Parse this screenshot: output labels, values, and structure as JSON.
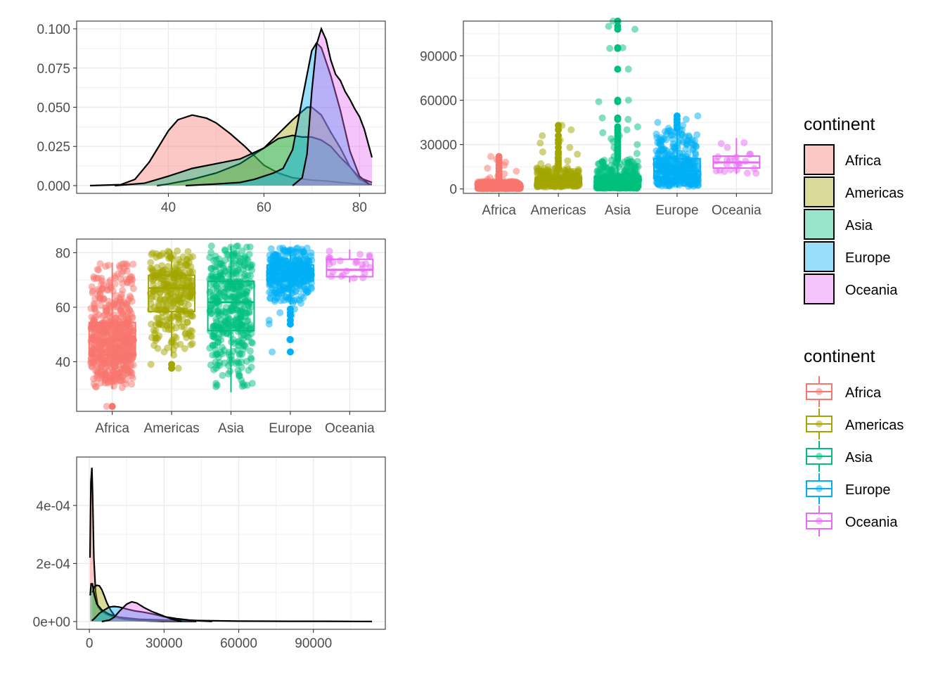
{
  "palette": {
    "Africa": "#F8766D",
    "Americas": "#A3A500",
    "Asia": "#00BF7D",
    "Europe": "#00B0F6",
    "Oceania": "#E76BF3"
  },
  "chart_data": [
    {
      "type": "area",
      "subtype": "density",
      "xlim": [
        23.6,
        82.6
      ],
      "ylim": [
        0,
        0.1
      ],
      "xticks": [
        40,
        60,
        80
      ],
      "yticks": [
        0,
        0.025,
        0.05,
        0.075,
        0.1
      ],
      "ytick_labels": [
        "0.000",
        "0.025",
        "0.050",
        "0.075",
        "0.100"
      ],
      "fill_alpha": 0.4,
      "grid": true,
      "series": [
        {
          "name": "Africa",
          "x": [
            23.6,
            30,
            33,
            36,
            40,
            42,
            45,
            48,
            50,
            53,
            56,
            60,
            63,
            66,
            70,
            73,
            76,
            79,
            82.6
          ],
          "y": [
            0.0,
            0.0006,
            0.004,
            0.015,
            0.035,
            0.042,
            0.045,
            0.043,
            0.04,
            0.033,
            0.025,
            0.013,
            0.008,
            0.005,
            0.0035,
            0.003,
            0.002,
            0.0012,
            0.0008
          ]
        },
        {
          "name": "Americas",
          "x": [
            37.6,
            40,
            45,
            50,
            55,
            60,
            63,
            66,
            69,
            70,
            72,
            74,
            76,
            78,
            80,
            82
          ],
          "y": [
            0.0,
            0.001,
            0.004,
            0.008,
            0.014,
            0.024,
            0.033,
            0.042,
            0.05,
            0.05,
            0.045,
            0.034,
            0.024,
            0.012,
            0.004,
            0.001
          ]
        },
        {
          "name": "Asia",
          "x": [
            28.8,
            35,
            40,
            45,
            50,
            55,
            60,
            63,
            66,
            68,
            70,
            72,
            74,
            76,
            78,
            80,
            82.6
          ],
          "y": [
            0.0,
            0.0015,
            0.006,
            0.011,
            0.014,
            0.017,
            0.024,
            0.03,
            0.032,
            0.031,
            0.031,
            0.029,
            0.025,
            0.018,
            0.012,
            0.005,
            0.002
          ]
        },
        {
          "name": "Europe",
          "x": [
            43.6,
            50,
            55,
            58,
            60,
            62,
            64,
            66,
            68,
            70,
            71,
            72,
            73,
            74,
            76,
            78,
            80,
            82
          ],
          "y": [
            0.0,
            0.001,
            0.002,
            0.004,
            0.006,
            0.008,
            0.011,
            0.023,
            0.055,
            0.086,
            0.091,
            0.088,
            0.079,
            0.07,
            0.048,
            0.022,
            0.006,
            0.0008
          ]
        },
        {
          "name": "Oceania",
          "x": [
            66,
            68,
            69,
            70,
            71,
            72,
            73,
            74,
            75,
            76,
            77,
            78,
            79,
            80,
            81,
            82.6
          ],
          "y": [
            0.0,
            0.005,
            0.02,
            0.06,
            0.09,
            0.1,
            0.093,
            0.08,
            0.071,
            0.067,
            0.06,
            0.055,
            0.049,
            0.044,
            0.036,
            0.018
          ]
        }
      ]
    },
    {
      "type": "scatter",
      "subtype": "boxplot+jitter",
      "categories": [
        "Africa",
        "Americas",
        "Asia",
        "Europe",
        "Oceania"
      ],
      "ylim": [
        -3000,
        113500
      ],
      "yticks": [
        0,
        30000,
        60000,
        90000
      ],
      "grid": true,
      "boxes": [
        {
          "name": "Africa",
          "q1": 600,
          "median": 1200,
          "q3": 2400,
          "whisker_low": 241,
          "whisker_high": 5000
        },
        {
          "name": "Americas",
          "q1": 3400,
          "median": 5500,
          "q3": 7800,
          "whisker_low": 1201,
          "whisker_high": 14500
        },
        {
          "name": "Asia",
          "q1": 1100,
          "median": 2600,
          "q3": 8500,
          "whisker_low": 331,
          "whisker_high": 19500
        },
        {
          "name": "Europe",
          "q1": 7200,
          "median": 12100,
          "q3": 20500,
          "whisker_low": 974,
          "whisker_high": 40000
        },
        {
          "name": "Oceania",
          "q1": 14100,
          "median": 17900,
          "q3": 22200,
          "whisker_low": 10040,
          "whisker_high": 34435
        }
      ],
      "outliers": {
        "Africa": [
          5800,
          6500,
          7500,
          8800,
          10200,
          12000,
          14000,
          16000,
          18000,
          20000,
          21900
        ],
        "Americas": [
          15000,
          17000,
          19000,
          21000,
          23500,
          25000,
          28000,
          31000,
          33000,
          36000,
          40000,
          42951
        ],
        "Asia": [
          20000,
          22000,
          24000,
          26000,
          28000,
          30000,
          32000,
          34000,
          36000,
          38000,
          40000,
          42000,
          47000,
          48000,
          59000,
          60000,
          81000,
          95000,
          95500,
          108000,
          110000,
          113523
        ],
        "Europe": [
          41000,
          43000,
          45000,
          47000,
          49357
        ]
      },
      "point_alpha": 0.5
    },
    {
      "type": "scatter",
      "subtype": "boxplot+jitter",
      "categories": [
        "Africa",
        "Americas",
        "Asia",
        "Europe",
        "Oceania"
      ],
      "ylim": [
        21.8,
        85
      ],
      "yticks": [
        40,
        60,
        80
      ],
      "grid": true,
      "boxes": [
        {
          "name": "Africa",
          "q1": 42.4,
          "median": 47.8,
          "q3": 54.4,
          "whisker_low": 29.9,
          "whisker_high": 76.4
        },
        {
          "name": "Americas",
          "q1": 58.4,
          "median": 67.0,
          "q3": 71.7,
          "whisker_low": 42.1,
          "whisker_high": 80.7
        },
        {
          "name": "Asia",
          "q1": 51.4,
          "median": 61.8,
          "q3": 69.5,
          "whisker_low": 28.8,
          "whisker_high": 82.6
        },
        {
          "name": "Europe",
          "q1": 69.6,
          "median": 72.2,
          "q3": 75.5,
          "whisker_low": 61.0,
          "whisker_high": 81.8
        },
        {
          "name": "Oceania",
          "q1": 71.2,
          "median": 73.7,
          "q3": 77.6,
          "whisker_low": 69.1,
          "whisker_high": 81.2
        }
      ],
      "outliers": {
        "Africa": [
          23.6
        ],
        "Americas": [
          37.6,
          39.0
        ],
        "Europe": [
          43.6,
          48.1,
          53.8,
          55.2,
          57.0,
          58.0,
          59.3
        ]
      },
      "point_alpha": 0.5
    },
    {
      "type": "area",
      "subtype": "density",
      "xlim": [
        241,
        113523
      ],
      "ylim": [
        0,
        0.00054
      ],
      "xticks": [
        0,
        30000,
        60000,
        90000
      ],
      "yticks": [
        0,
        0.0002,
        0.0004
      ],
      "ytick_labels": [
        "0e+00",
        "2e-04",
        "4e-04"
      ],
      "fill_alpha": 0.4,
      "grid": true,
      "series": [
        {
          "name": "Africa",
          "x": [
            241,
            600,
            1000,
            1300,
            1800,
            2500,
            3500,
            5000,
            7000,
            10000,
            14000,
            20000,
            30000
          ],
          "y": [
            0.00022,
            0.00048,
            0.00053,
            0.00044,
            0.00022,
            0.0001,
            5e-05,
            3.5e-05,
            2.5e-05,
            1.5e-05,
            8e-06,
            3e-06,
            5e-07
          ]
        },
        {
          "name": "Americas",
          "x": [
            1201,
            2000,
            3000,
            4000,
            5000,
            6000,
            7000,
            8500,
            10000,
            12000,
            15000,
            20000,
            30000,
            42951
          ],
          "y": [
            0.0001,
            0.00012,
            0.000125,
            0.000123,
            0.00011,
            8.8e-05,
            6.5e-05,
            4e-05,
            2.2e-05,
            1.2e-05,
            7e-06,
            3e-06,
            1e-06,
            2e-07
          ]
        },
        {
          "name": "Asia",
          "x": [
            331,
            700,
            1200,
            2000,
            3000,
            5000,
            8000,
            12000,
            20000,
            30000,
            40000,
            50000,
            60000,
            80000,
            95000,
            113523
          ],
          "y": [
            9e-05,
            0.00013,
            0.00013,
            9e-05,
            6e-05,
            4e-05,
            2.5e-05,
            1.5e-05,
            8e-06,
            5e-06,
            4e-06,
            2.5e-06,
            1.5e-06,
            1e-06,
            8e-07,
            2e-07
          ]
        },
        {
          "name": "Europe",
          "x": [
            974,
            2000,
            4000,
            6000,
            8000,
            10000,
            12000,
            15000,
            18000,
            22000,
            26000,
            30000,
            35000,
            40000,
            45000,
            49357
          ],
          "y": [
            3e-06,
            1e-05,
            2.8e-05,
            4e-05,
            5e-05,
            5.2e-05,
            5e-05,
            4.3e-05,
            3.7e-05,
            3.2e-05,
            2.5e-05,
            1.7e-05,
            1e-05,
            5e-06,
            2e-06,
            5e-07
          ]
        },
        {
          "name": "Oceania",
          "x": [
            5000,
            8000,
            10000,
            12000,
            15000,
            17000,
            19000,
            22000,
            25000,
            28000,
            31000,
            34000,
            37000
          ],
          "y": [
            0.0,
            5e-06,
            1.5e-05,
            3.5e-05,
            6e-05,
            6.8e-05,
            6.4e-05,
            4.8e-05,
            3.5e-05,
            2.5e-05,
            1.5e-05,
            6e-06,
            5e-07
          ]
        }
      ]
    }
  ],
  "legends": [
    {
      "title": "continent",
      "kind": "fill",
      "items": [
        "Africa",
        "Americas",
        "Asia",
        "Europe",
        "Oceania"
      ]
    },
    {
      "title": "continent",
      "kind": "boxplot",
      "items": [
        "Africa",
        "Americas",
        "Asia",
        "Europe",
        "Oceania"
      ]
    }
  ]
}
